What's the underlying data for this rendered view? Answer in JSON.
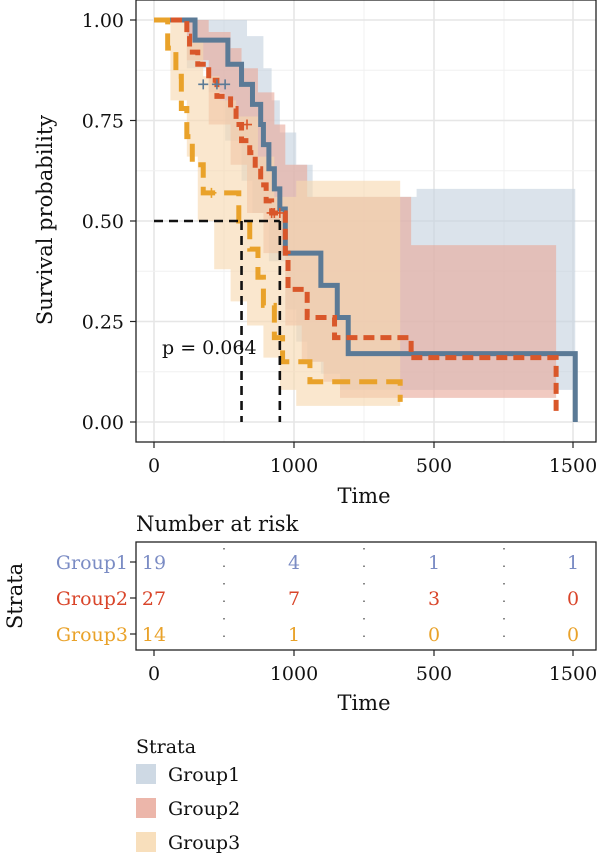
{
  "chart_data": [
    {
      "type": "line",
      "chart_kind": "kaplan-meier survival curve",
      "xlabel": "Time",
      "ylabel": "Survival probability",
      "x_tick_labels": [
        "0",
        "1000",
        "500",
        "1500"
      ],
      "y_tick_labels": [
        "0.00",
        "0.25",
        "0.50",
        "0.75",
        "1.00"
      ],
      "xlim": [
        0,
        1550
      ],
      "ylim": [
        0,
        1
      ],
      "grid": true,
      "annotation": "p = 0.064",
      "median_survival_guides": [
        {
          "time": 320,
          "survival": 0.5
        },
        {
          "time": 460,
          "survival": 0.5
        }
      ],
      "series": [
        {
          "name": "Group1",
          "color": "#5b7a96",
          "ci_color": "#c5d2df",
          "line_style": "solid",
          "steps": [
            [
              0,
              1.0
            ],
            [
              100,
              1.0
            ],
            [
              150,
              0.95
            ],
            [
              250,
              0.95
            ],
            [
              270,
              0.89
            ],
            [
              320,
              0.84
            ],
            [
              340,
              0.84
            ],
            [
              360,
              0.79
            ],
            [
              390,
              0.74
            ],
            [
              400,
              0.69
            ],
            [
              420,
              0.63
            ],
            [
              440,
              0.58
            ],
            [
              460,
              0.53
            ],
            [
              480,
              0.42
            ],
            [
              500,
              0.42
            ],
            [
              600,
              0.42
            ],
            [
              610,
              0.34
            ],
            [
              620,
              0.34
            ],
            [
              670,
              0.26
            ],
            [
              680,
              0.26
            ],
            [
              700,
              0.26
            ],
            [
              710,
              0.17
            ],
            [
              940,
              0.17
            ],
            [
              1500,
              0.17
            ],
            [
              1540,
              0.0
            ]
          ],
          "ci_upper": [
            [
              0,
              1.0
            ],
            [
              120,
              1.0
            ],
            [
              200,
              1.0
            ],
            [
              290,
              1.0
            ],
            [
              340,
              0.96
            ],
            [
              400,
              0.88
            ],
            [
              430,
              0.8
            ],
            [
              460,
              0.72
            ],
            [
              520,
              0.64
            ],
            [
              580,
              0.56
            ],
            [
              700,
              0.56
            ],
            [
              960,
              0.58
            ],
            [
              1540,
              0.58
            ]
          ],
          "ci_lower": [
            [
              0,
              1.0
            ],
            [
              120,
              0.88
            ],
            [
              200,
              0.82
            ],
            [
              260,
              0.7
            ],
            [
              320,
              0.6
            ],
            [
              360,
              0.52
            ],
            [
              420,
              0.4
            ],
            [
              480,
              0.28
            ],
            [
              520,
              0.2
            ],
            [
              560,
              0.15
            ],
            [
              610,
              0.12
            ],
            [
              680,
              0.08
            ],
            [
              1540,
              0.08
            ]
          ],
          "censored": [
            [
              180,
              0.84
            ],
            [
              230,
              0.84
            ],
            [
              260,
              0.84
            ]
          ]
        },
        {
          "name": "Group2",
          "color": "#d9572a",
          "ci_color": "#e9a99b",
          "line_style": "dashed",
          "steps": [
            [
              0,
              1.0
            ],
            [
              100,
              1.0
            ],
            [
              120,
              0.96
            ],
            [
              130,
              0.92
            ],
            [
              160,
              0.89
            ],
            [
              200,
              0.85
            ],
            [
              230,
              0.81
            ],
            [
              280,
              0.78
            ],
            [
              300,
              0.74
            ],
            [
              320,
              0.7
            ],
            [
              350,
              0.67
            ],
            [
              370,
              0.63
            ],
            [
              390,
              0.59
            ],
            [
              410,
              0.55
            ],
            [
              430,
              0.52
            ],
            [
              470,
              0.52
            ],
            [
              480,
              0.42
            ],
            [
              490,
              0.33
            ],
            [
              530,
              0.33
            ],
            [
              560,
              0.26
            ],
            [
              660,
              0.21
            ],
            [
              900,
              0.21
            ],
            [
              940,
              0.16
            ],
            [
              1460,
              0.16
            ],
            [
              1470,
              0.02
            ]
          ],
          "ci_upper": [
            [
              0,
              1.0
            ],
            [
              120,
              1.0
            ],
            [
              200,
              0.97
            ],
            [
              280,
              0.93
            ],
            [
              320,
              0.88
            ],
            [
              380,
              0.82
            ],
            [
              440,
              0.74
            ],
            [
              480,
              0.64
            ],
            [
              560,
              0.56
            ],
            [
              940,
              0.44
            ],
            [
              1470,
              0.44
            ]
          ],
          "ci_lower": [
            [
              0,
              1.0
            ],
            [
              120,
              0.9
            ],
            [
              200,
              0.74
            ],
            [
              280,
              0.64
            ],
            [
              340,
              0.52
            ],
            [
              400,
              0.42
            ],
            [
              480,
              0.24
            ],
            [
              540,
              0.15
            ],
            [
              620,
              0.1
            ],
            [
              680,
              0.06
            ],
            [
              1470,
              0.06
            ]
          ],
          "censored": [
            [
              340,
              0.74
            ],
            [
              430,
              0.52
            ],
            [
              440,
              0.52
            ],
            [
              460,
              0.52
            ]
          ]
        },
        {
          "name": "Group3",
          "color": "#e9a22a",
          "ci_color": "#f7d9b0",
          "line_style": "long-dashed",
          "steps": [
            [
              0,
              1.0
            ],
            [
              40,
              1.0
            ],
            [
              50,
              0.93
            ],
            [
              80,
              0.86
            ],
            [
              100,
              0.78
            ],
            [
              120,
              0.71
            ],
            [
              140,
              0.64
            ],
            [
              180,
              0.57
            ],
            [
              240,
              0.57
            ],
            [
              310,
              0.5
            ],
            [
              340,
              0.5
            ],
            [
              350,
              0.43
            ],
            [
              380,
              0.36
            ],
            [
              400,
              0.29
            ],
            [
              430,
              0.29
            ],
            [
              440,
              0.21
            ],
            [
              470,
              0.15
            ],
            [
              570,
              0.1
            ],
            [
              890,
              0.1
            ],
            [
              900,
              0.05
            ]
          ],
          "ci_upper": [
            [
              0,
              1.0
            ],
            [
              60,
              1.0
            ],
            [
              120,
              0.95
            ],
            [
              180,
              0.86
            ],
            [
              240,
              0.8
            ],
            [
              300,
              0.76
            ],
            [
              380,
              0.66
            ],
            [
              440,
              0.56
            ],
            [
              520,
              0.6
            ],
            [
              900,
              0.6
            ]
          ],
          "ci_lower": [
            [
              0,
              1.0
            ],
            [
              60,
              0.8
            ],
            [
              120,
              0.66
            ],
            [
              160,
              0.5
            ],
            [
              220,
              0.38
            ],
            [
              280,
              0.3
            ],
            [
              340,
              0.24
            ],
            [
              400,
              0.16
            ],
            [
              460,
              0.08
            ],
            [
              520,
              0.04
            ],
            [
              900,
              0.04
            ]
          ],
          "censored": [
            [
              210,
              0.57
            ]
          ]
        }
      ],
      "legend": {
        "title": "Strata",
        "placement": "bottom",
        "items": [
          "Group1",
          "Group2",
          "Group3"
        ]
      }
    },
    {
      "type": "table",
      "chart_kind": "number at risk",
      "title": "Number at risk",
      "ylabel": "Strata",
      "xlabel": "Time",
      "x_tick_labels": [
        "0",
        "1000",
        "500",
        "1500"
      ],
      "rows": [
        {
          "name": "Group1",
          "color": "#7b8cc4",
          "values": [
            "19",
            "4",
            "1",
            "1"
          ]
        },
        {
          "name": "Group2",
          "color": "#d9452a",
          "values": [
            "27",
            "7",
            "3",
            "0"
          ]
        },
        {
          "name": "Group3",
          "color": "#e9a22a",
          "values": [
            "14",
            "1",
            "0",
            "0"
          ]
        }
      ]
    }
  ]
}
